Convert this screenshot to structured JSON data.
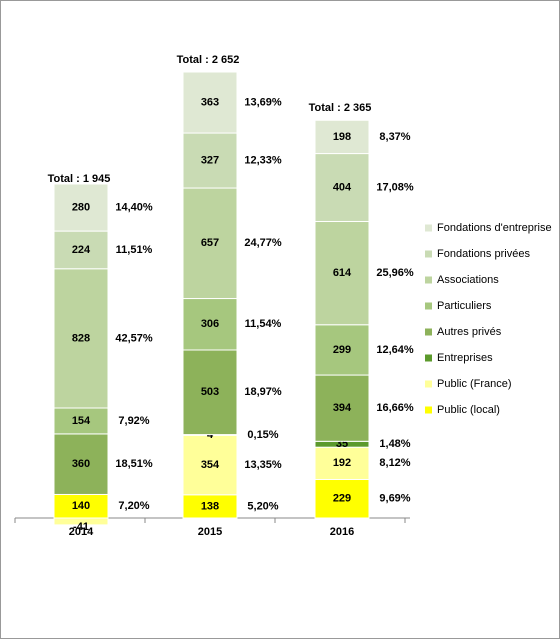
{
  "chart_data": {
    "type": "stacked-bar",
    "categories": [
      "2014",
      "2015",
      "2016"
    ],
    "totals": [
      1945,
      2652,
      2365
    ],
    "total_labels": [
      "Total : 1 945",
      "Total : 2 652",
      "Total : 2 365"
    ],
    "series": [
      {
        "name": "Public (local)",
        "color": "#ffff00",
        "values": [
          140,
          138,
          229
        ],
        "percent_labels": [
          "7,20%",
          "5,20%",
          "9,69%"
        ]
      },
      {
        "name": "Public (France)",
        "color": "#ffff99",
        "values": [
          -41,
          354,
          192
        ],
        "percent_labels": [
          null,
          "13,35%",
          "8,12%"
        ]
      },
      {
        "name": "Entreprises",
        "color": "#5c9a2c",
        "values": [
          null,
          4,
          35
        ],
        "percent_labels": [
          null,
          "0,15%",
          "1,48%"
        ]
      },
      {
        "name": "Autres privés",
        "color": "#8db25a",
        "values": [
          360,
          503,
          394
        ],
        "percent_labels": [
          "18,51%",
          "18,97%",
          "16,66%"
        ]
      },
      {
        "name": "Particuliers",
        "color": "#a6c77e",
        "values": [
          154,
          306,
          299
        ],
        "percent_labels": [
          "7,92%",
          "11,54%",
          "12,64%"
        ]
      },
      {
        "name": "Associations",
        "color": "#bdd49f",
        "values": [
          828,
          657,
          614
        ],
        "percent_labels": [
          "42,57%",
          "24,77%",
          "25,96%"
        ]
      },
      {
        "name": "Fondations privées",
        "color": "#c9dbb4",
        "values": [
          224,
          327,
          404
        ],
        "percent_labels": [
          "11,51%",
          "12,33%",
          "17,08%"
        ]
      },
      {
        "name": "Fondations d'entreprise",
        "color": "#dfe8d3",
        "values": [
          280,
          363,
          198
        ],
        "percent_labels": [
          "14,40%",
          "13,69%",
          "8,37%"
        ]
      }
    ],
    "legend": "right"
  }
}
